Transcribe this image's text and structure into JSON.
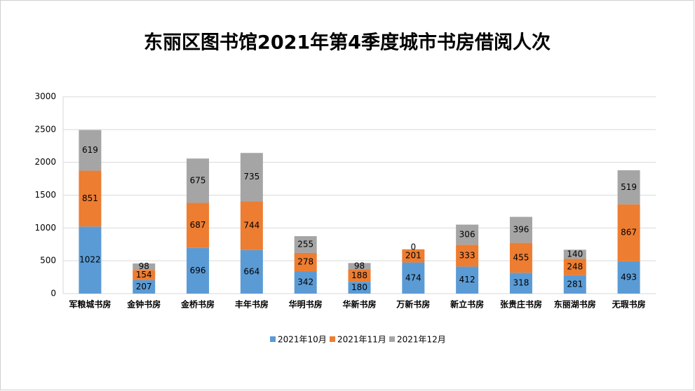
{
  "chart_data": {
    "type": "stacked-bar",
    "title": "东丽区图书馆2021年第4季度城市书房借阅人次",
    "categories": [
      "军粮城书房",
      "金钟书房",
      "金桥书房",
      "丰年书房",
      "华明书房",
      "华新书房",
      "万新书房",
      "新立书房",
      "张贵庄书房",
      "东丽湖书房",
      "无瑕书房"
    ],
    "series": [
      {
        "name": "2021年10月",
        "color": "#5b9bd5",
        "values": [
          1022,
          207,
          696,
          664,
          342,
          180,
          474,
          412,
          318,
          281,
          493
        ]
      },
      {
        "name": "2021年11月",
        "color": "#ed7d31",
        "values": [
          851,
          154,
          687,
          744,
          278,
          188,
          201,
          333,
          455,
          248,
          867
        ]
      },
      {
        "name": "2021年12月",
        "color": "#a5a5a5",
        "values": [
          619,
          98,
          675,
          735,
          255,
          98,
          0,
          306,
          396,
          140,
          519
        ]
      }
    ],
    "ylim": [
      0,
      3000
    ],
    "yticks": [
      0,
      500,
      1000,
      1500,
      2000,
      2500,
      3000
    ],
    "grid": true,
    "legend": "bottom"
  }
}
